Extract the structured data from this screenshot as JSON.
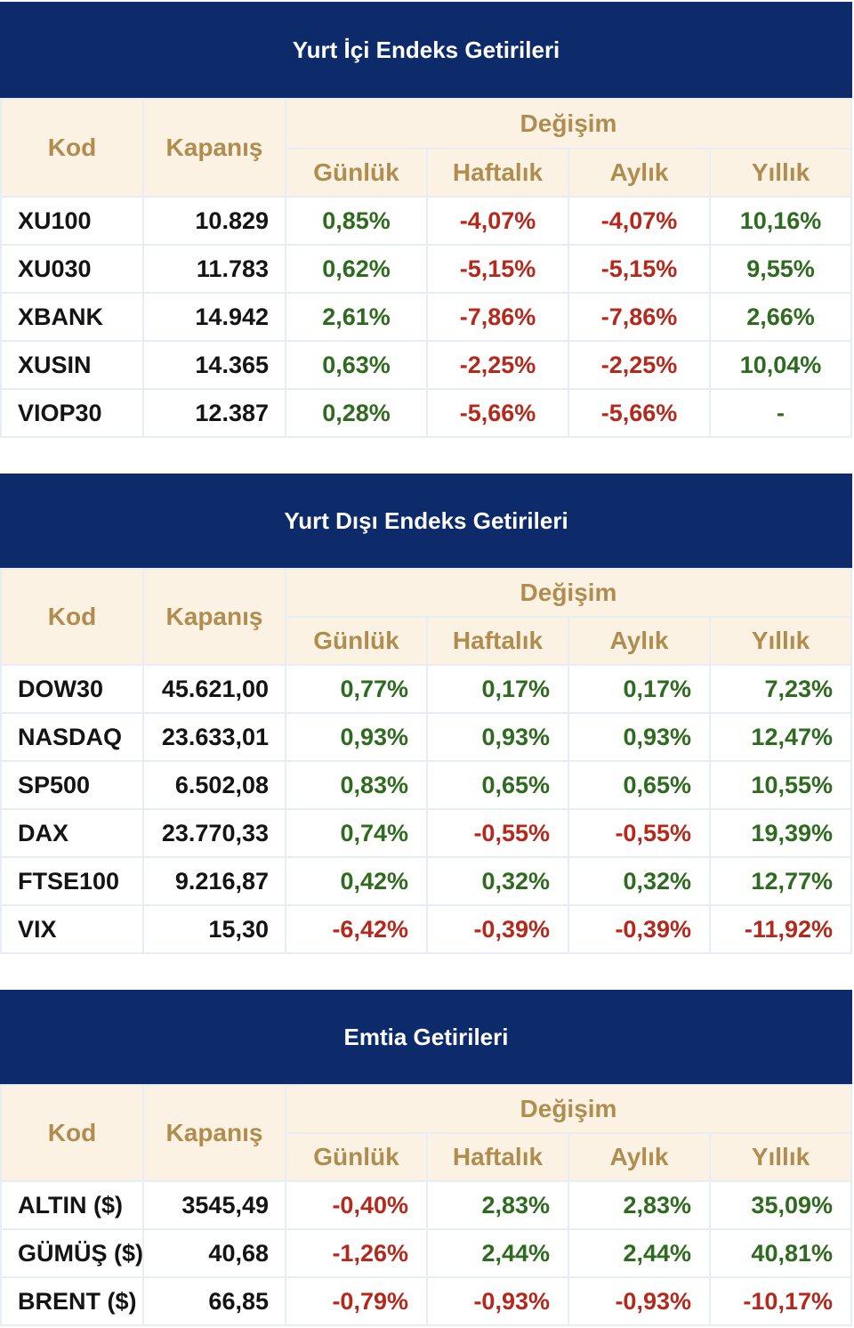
{
  "headers": {
    "kod": "Kod",
    "kapanis": "Kapanış",
    "degisim": "Değişim",
    "gunluk": "Günlük",
    "haftalik": "Haftalık",
    "aylik": "Aylık",
    "yillik": "Yıllık"
  },
  "colors": {
    "banner": "#0d2a6b",
    "header_bg": "#fbf2e4",
    "header_text": "#b08d4f",
    "positive": "#2f6b1f",
    "negative": "#b5291d"
  },
  "sections": [
    {
      "title": "Yurt İçi Endeks Getirileri",
      "rows": [
        {
          "kod": "XU100",
          "kapanis": "10.829",
          "gunluk": "0,85%",
          "haftalik": "-4,07%",
          "aylik": "-4,07%",
          "yillik": "10,16%"
        },
        {
          "kod": "XU030",
          "kapanis": "11.783",
          "gunluk": "0,62%",
          "haftalik": "-5,15%",
          "aylik": "-5,15%",
          "yillik": "9,55%"
        },
        {
          "kod": "XBANK",
          "kapanis": "14.942",
          "gunluk": "2,61%",
          "haftalik": "-7,86%",
          "aylik": "-7,86%",
          "yillik": "2,66%"
        },
        {
          "kod": "XUSIN",
          "kapanis": "14.365",
          "gunluk": "0,63%",
          "haftalik": "-2,25%",
          "aylik": "-2,25%",
          "yillik": "10,04%"
        },
        {
          "kod": "VIOP30",
          "kapanis": "12.387",
          "gunluk": "0,28%",
          "haftalik": "-5,66%",
          "aylik": "-5,66%",
          "yillik": "-"
        }
      ]
    },
    {
      "title": "Yurt Dışı Endeks Getirileri",
      "rows": [
        {
          "kod": "DOW30",
          "kapanis": "45.621,00",
          "gunluk": "0,77%",
          "haftalik": "0,17%",
          "aylik": "0,17%",
          "yillik": "7,23%"
        },
        {
          "kod": "NASDAQ",
          "kapanis": "23.633,01",
          "gunluk": "0,93%",
          "haftalik": "0,93%",
          "aylik": "0,93%",
          "yillik": "12,47%"
        },
        {
          "kod": "SP500",
          "kapanis": "6.502,08",
          "gunluk": "0,83%",
          "haftalik": "0,65%",
          "aylik": "0,65%",
          "yillik": "10,55%"
        },
        {
          "kod": "DAX",
          "kapanis": "23.770,33",
          "gunluk": "0,74%",
          "haftalik": "-0,55%",
          "aylik": "-0,55%",
          "yillik": "19,39%"
        },
        {
          "kod": "FTSE100",
          "kapanis": "9.216,87",
          "gunluk": "0,42%",
          "haftalik": "0,32%",
          "aylik": "0,32%",
          "yillik": "12,77%"
        },
        {
          "kod": "VIX",
          "kapanis": "15,30",
          "gunluk": "-6,42%",
          "haftalik": "-0,39%",
          "aylik": "-0,39%",
          "yillik": "-11,92%"
        }
      ]
    },
    {
      "title": "Emtia Getirileri",
      "rows": [
        {
          "kod": "ALTIN ($)",
          "kapanis": "3545,49",
          "gunluk": "-0,40%",
          "haftalik": "2,83%",
          "aylik": "2,83%",
          "yillik": "35,09%"
        },
        {
          "kod": "GÜMÜŞ ($)",
          "kapanis": "40,68",
          "gunluk": "-1,26%",
          "haftalik": "2,44%",
          "aylik": "2,44%",
          "yillik": "40,81%"
        },
        {
          "kod": "BRENT ($)",
          "kapanis": "66,85",
          "gunluk": "-0,79%",
          "haftalik": "-0,93%",
          "aylik": "-0,93%",
          "yillik": "-10,17%"
        }
      ]
    }
  ]
}
